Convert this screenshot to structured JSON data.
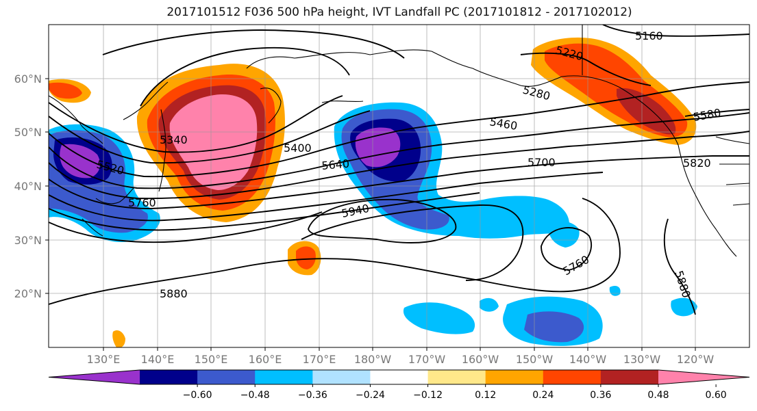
{
  "title": "2017101512 F036 500 hPa height, IVT Landfall PC (2017101812 - 2017102012)",
  "lat_labels": [
    "60°N",
    "50°N",
    "40°N",
    "30°N",
    "20°N"
  ],
  "lon_labels": [
    "130°E",
    "140°E",
    "150°E",
    "160°E",
    "170°E",
    "180°W",
    "170°W",
    "160°W",
    "150°W",
    "140°W",
    "130°W",
    "120°W"
  ],
  "contour_labels": [
    "5160",
    "5220",
    "5280",
    "5580",
    "5460",
    "5820",
    "5700",
    "5400",
    "5640",
    "5340",
    "5520",
    "5760",
    "5940",
    "5760",
    "5880",
    "5880"
  ],
  "colorbar": {
    "colors": [
      "#9932cc",
      "#00008b",
      "#3c5acd",
      "#00bfff",
      "#b0e2ff",
      "#ffffff",
      "#ffe88a",
      "#ffa500",
      "#ff4500",
      "#b22222",
      "#ff82ab"
    ],
    "tick_labels": [
      "−0.60",
      "−0.48",
      "−0.36",
      "−0.24",
      "−0.12",
      "0.12",
      "0.24",
      "0.36",
      "0.48",
      "0.60"
    ]
  }
}
